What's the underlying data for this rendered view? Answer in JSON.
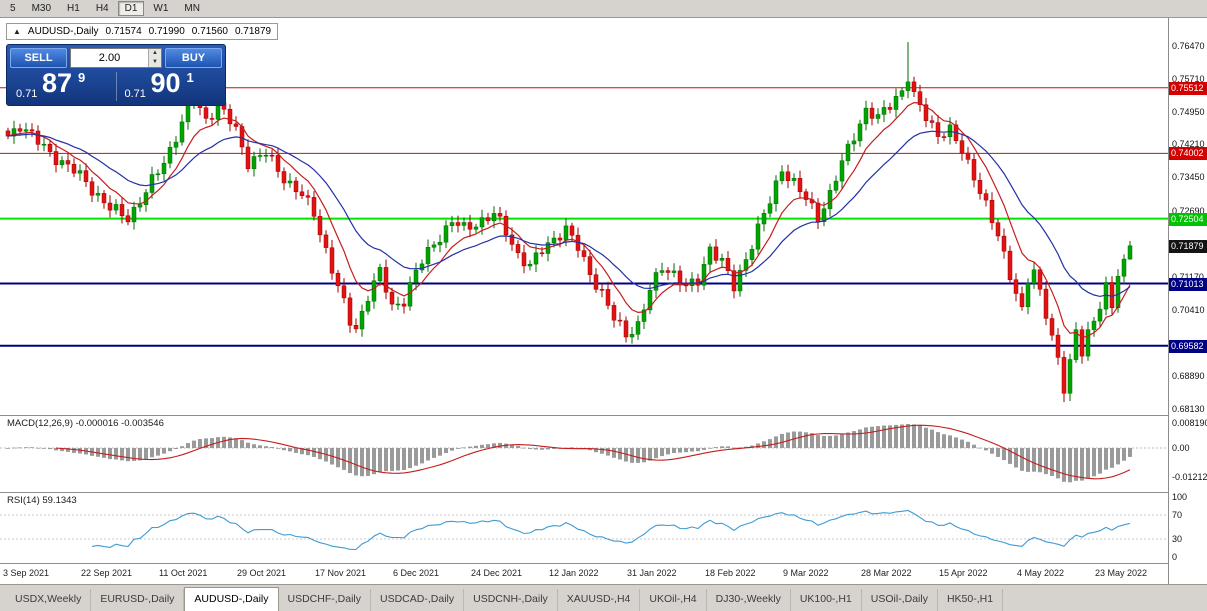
{
  "toolbar": {
    "items": [
      "5",
      "M30",
      "H1",
      "H4",
      "D1",
      "W1",
      "MN"
    ],
    "active": "D1"
  },
  "chart_header": {
    "collapse_icon": "▲",
    "symbol": "AUDUSD-,Daily",
    "open": "0.71574",
    "high": "0.71990",
    "low": "0.71560",
    "close": "0.71879"
  },
  "trade_widget": {
    "sell_label": "SELL",
    "buy_label": "BUY",
    "volume": "2.00",
    "sell_price": {
      "prefix": "0.71",
      "big": "87",
      "sup": "9"
    },
    "buy_price": {
      "prefix": "0.71",
      "big": "90",
      "sup": "1"
    }
  },
  "panes": {
    "macd_title": "MACD(12,26,9) -0.000016 -0.003546",
    "rsi_title": "RSI(14) 59.1343"
  },
  "colors": {
    "up": "#00a400",
    "up_stroke": "#006a00",
    "down": "#e31212",
    "down_stroke": "#9c0000",
    "ma_fast": "#c41d1d",
    "ma_slow": "#2431a6",
    "macd_hist": "#9a9a9a",
    "macd_signal": "#c41d1d",
    "rsi": "#3e9bd5"
  },
  "chart_data": {
    "type": "candlestick",
    "symbol": "AUDUSD",
    "timeframe": "Daily",
    "title": "AUDUSD-,Daily",
    "current_ohlc": {
      "open": 0.71574,
      "high": 0.7199,
      "low": 0.7156,
      "close": 0.71879
    },
    "ylim": [
      0.6813,
      0.7647
    ],
    "y_axis_ticks": [
      0.7647,
      0.7571,
      0.7495,
      0.7421,
      0.7345,
      0.7269,
      0.7117,
      0.7041,
      0.6889,
      0.6813
    ],
    "price_tags": [
      {
        "price": 0.75512,
        "bg": "#d40000",
        "fg": "#ffffff",
        "line": "#cc1111",
        "line_width": 1
      },
      {
        "price": 0.74002,
        "bg": "#d40000",
        "fg": "#ffffff",
        "line": "#cc1111",
        "line_width": 1
      },
      {
        "price": 0.72504,
        "bg": "#00c400",
        "fg": "#ffffff",
        "line": "#00e400",
        "line_width": 2
      },
      {
        "price": 0.71879,
        "bg": "#141414",
        "fg": "#ffffff",
        "line": null,
        "line_width": 0
      },
      {
        "price": 0.71013,
        "bg": "#000086",
        "fg": "#ffffff",
        "line": "#000086",
        "line_width": 2
      },
      {
        "price": 0.69582,
        "bg": "#000086",
        "fg": "#ffffff",
        "line": "#000086",
        "line_width": 2
      }
    ],
    "x_labels": [
      "3 Sep 2021",
      "22 Sep 2021",
      "11 Oct 2021",
      "29 Oct 2021",
      "17 Nov 2021",
      "6 Dec 2021",
      "24 Dec 2021",
      "12 Jan 2022",
      "31 Jan 2022",
      "18 Feb 2022",
      "9 Mar 2022",
      "28 Mar 2022",
      "15 Apr 2022",
      "4 May 2022",
      "23 May 2022"
    ],
    "close_anchors": [
      [
        0,
        0.744
      ],
      [
        2,
        0.7468
      ],
      [
        5,
        0.7425
      ],
      [
        8,
        0.7392
      ],
      [
        13,
        0.7336
      ],
      [
        17,
        0.7272
      ],
      [
        20,
        0.7254
      ],
      [
        23,
        0.731
      ],
      [
        26,
        0.7382
      ],
      [
        29,
        0.747
      ],
      [
        31,
        0.7524
      ],
      [
        33,
        0.748
      ],
      [
        35,
        0.7512
      ],
      [
        38,
        0.7452
      ],
      [
        40,
        0.7382
      ],
      [
        43,
        0.7398
      ],
      [
        46,
        0.7346
      ],
      [
        49,
        0.7302
      ],
      [
        51,
        0.7262
      ],
      [
        53,
        0.718
      ],
      [
        55,
        0.7092
      ],
      [
        57,
        0.7012
      ],
      [
        58,
        0.6998
      ],
      [
        60,
        0.7076
      ],
      [
        62,
        0.7126
      ],
      [
        64,
        0.7048
      ],
      [
        66,
        0.7066
      ],
      [
        68,
        0.7126
      ],
      [
        71,
        0.7196
      ],
      [
        74,
        0.7242
      ],
      [
        76,
        0.7226
      ],
      [
        78,
        0.7242
      ],
      [
        81,
        0.7258
      ],
      [
        83,
        0.7222
      ],
      [
        85,
        0.717
      ],
      [
        87,
        0.7138
      ],
      [
        89,
        0.7178
      ],
      [
        91,
        0.7208
      ],
      [
        93,
        0.7224
      ],
      [
        95,
        0.7182
      ],
      [
        97,
        0.7128
      ],
      [
        99,
        0.7078
      ],
      [
        101,
        0.7018
      ],
      [
        103,
        0.6988
      ],
      [
        105,
        0.7006
      ],
      [
        107,
        0.7082
      ],
      [
        109,
        0.7142
      ],
      [
        111,
        0.7126
      ],
      [
        113,
        0.7088
      ],
      [
        115,
        0.7108
      ],
      [
        117,
        0.7186
      ],
      [
        119,
        0.7148
      ],
      [
        121,
        0.7092
      ],
      [
        123,
        0.7162
      ],
      [
        125,
        0.7226
      ],
      [
        127,
        0.7288
      ],
      [
        129,
        0.7368
      ],
      [
        131,
        0.7332
      ],
      [
        133,
        0.7292
      ],
      [
        135,
        0.7256
      ],
      [
        137,
        0.7308
      ],
      [
        139,
        0.7376
      ],
      [
        141,
        0.7442
      ],
      [
        143,
        0.7502
      ],
      [
        145,
        0.7478
      ],
      [
        147,
        0.7512
      ],
      [
        149,
        0.7548
      ],
      [
        150,
        0.7576
      ],
      [
        151,
        0.7528
      ],
      [
        153,
        0.7482
      ],
      [
        155,
        0.7448
      ],
      [
        157,
        0.7452
      ],
      [
        159,
        0.7402
      ],
      [
        161,
        0.7352
      ],
      [
        163,
        0.7282
      ],
      [
        165,
        0.7205
      ],
      [
        167,
        0.7125
      ],
      [
        169,
        0.7042
      ],
      [
        170,
        0.7108
      ],
      [
        171,
        0.7122
      ],
      [
        173,
        0.7035
      ],
      [
        175,
        0.6932
      ],
      [
        176,
        0.6858
      ],
      [
        177,
        0.6912
      ],
      [
        178,
        0.6988
      ],
      [
        179,
        0.6945
      ],
      [
        180,
        0.6992
      ],
      [
        181,
        0.7022
      ],
      [
        182,
        0.7052
      ],
      [
        183,
        0.7088
      ],
      [
        184,
        0.7042
      ],
      [
        185,
        0.7118
      ],
      [
        186,
        0.71574
      ],
      [
        187,
        0.71879
      ]
    ],
    "wick_overrides": {
      "35": {
        "high": 0.755
      },
      "103": {
        "low": 0.6966
      },
      "150": {
        "high": 0.7656
      },
      "176": {
        "low": 0.6829
      },
      "187": {
        "high": 0.7199,
        "low": 0.7156
      }
    },
    "macd": {
      "params": "12,26,9",
      "value": -1.6e-05,
      "signal": -0.003546,
      "axis_labels": [
        "0.008190",
        "0.00",
        "-0.01212"
      ]
    },
    "rsi": {
      "period": 14,
      "value": 59.1343,
      "axis_labels": [
        "100",
        "70",
        "30",
        "0"
      ],
      "levels": [
        70,
        30
      ]
    }
  },
  "tabs": {
    "active_index": 2,
    "items": [
      "USDX,Weekly",
      "EURUSD-,Daily",
      "AUDUSD-,Daily",
      "USDCHF-,Daily",
      "USDCAD-,Daily",
      "USDCNH-,Daily",
      "XAUUSD-,H4",
      "UKOil-,H4",
      "DJ30-,Weekly",
      "UK100-,H1",
      "USOil-,Daily",
      "HK50-,H1"
    ]
  }
}
